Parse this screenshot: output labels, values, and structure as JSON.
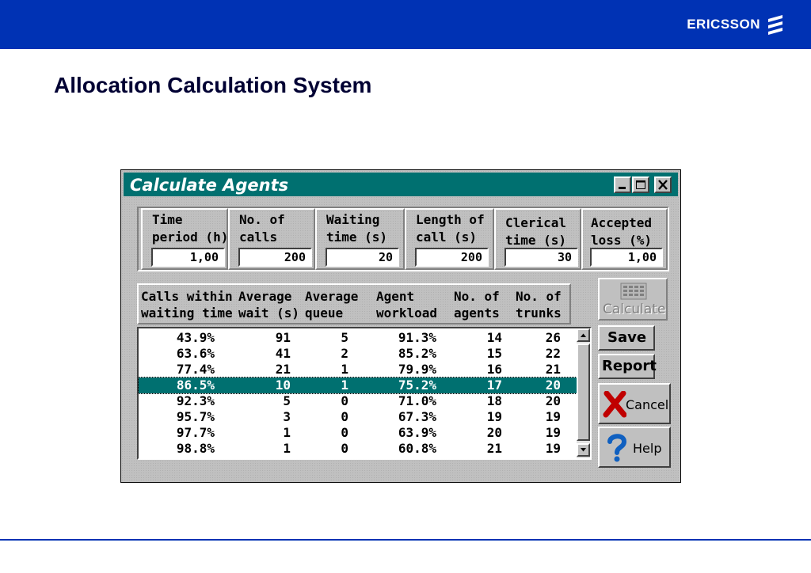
{
  "brand": {
    "logo_text": "ERICSSON",
    "bar_color": "#0032b4"
  },
  "slide_title": "Allocation Calculation System",
  "dialog": {
    "title": "Calculate Agents",
    "title_color": "#007070",
    "window_buttons": {
      "minimize": "minimize-icon",
      "maximize": "maximize-icon",
      "close": "close-icon"
    },
    "inputs": [
      {
        "label_line1": "Time",
        "label_line2": "period (h)",
        "value": "1,00"
      },
      {
        "label_line1": "No. of",
        "label_line2": "calls",
        "value": "200"
      },
      {
        "label_line1": "Waiting",
        "label_line2": "time (s)",
        "value": "20"
      },
      {
        "label_line1": "Length of",
        "label_line2": "call (s)",
        "value": "200"
      },
      {
        "label_line1": "Clerical",
        "label_line2": "time (s)",
        "value": "30"
      },
      {
        "label_line1": "Accepted",
        "label_line2": "loss (%)",
        "value": "1,00"
      }
    ],
    "columns": [
      {
        "line1": "Calls within",
        "line2": "waiting time"
      },
      {
        "line1": "Average",
        "line2": "wait (s)"
      },
      {
        "line1": "Average",
        "line2": "queue"
      },
      {
        "line1": "Agent",
        "line2": "workload"
      },
      {
        "line1": "No. of",
        "line2": "agents"
      },
      {
        "line1": "No. of",
        "line2": "trunks"
      }
    ],
    "rows": [
      [
        "43.9%",
        "91",
        "5",
        "91.3%",
        "14",
        "26"
      ],
      [
        "63.6%",
        "41",
        "2",
        "85.2%",
        "15",
        "22"
      ],
      [
        "77.4%",
        "21",
        "1",
        "79.9%",
        "16",
        "21"
      ],
      [
        "86.5%",
        "10",
        "1",
        "75.2%",
        "17",
        "20"
      ],
      [
        "92.3%",
        "5",
        "0",
        "71.0%",
        "18",
        "20"
      ],
      [
        "95.7%",
        "3",
        "0",
        "67.3%",
        "19",
        "19"
      ],
      [
        "97.7%",
        "1",
        "0",
        "63.9%",
        "20",
        "19"
      ],
      [
        "98.8%",
        "1",
        "0",
        "60.8%",
        "21",
        "19"
      ]
    ],
    "selected_row": 3,
    "buttons": {
      "calculate": "Calculate",
      "save": "Save",
      "report": "Report",
      "cancel": "Cancel",
      "help": "Help"
    }
  }
}
